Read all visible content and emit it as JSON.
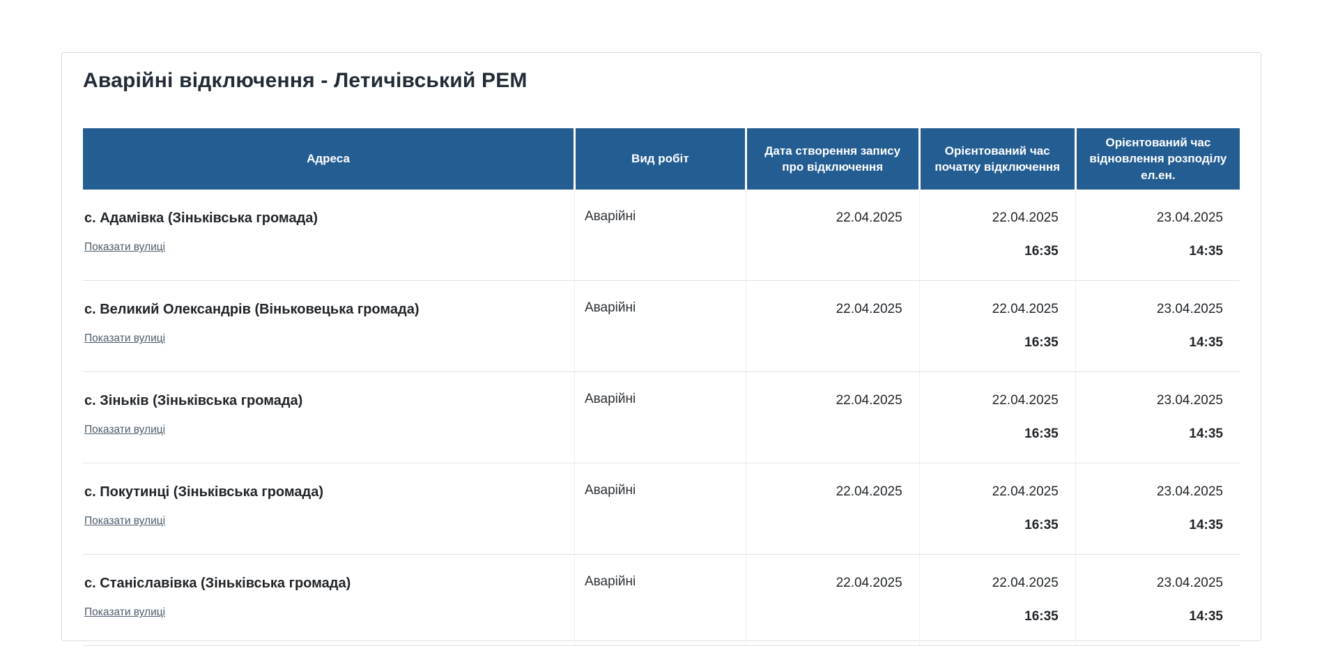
{
  "page": {
    "title": "Аварійні відключення - Летичівський РЕМ"
  },
  "table": {
    "columns": [
      {
        "label": "Адреса"
      },
      {
        "label": "Вид робіт"
      },
      {
        "label": "Дата створення запису про відключення"
      },
      {
        "label": "Орієнтований час початку відключення"
      },
      {
        "label": "Орієнтований час відновлення розподілу ел.ен."
      }
    ],
    "show_streets_label": "Показати вулиці",
    "rows": [
      {
        "address": "с. Адамівка (Зіньківська громада)",
        "work_type": "Аварійні",
        "created_date": "22.04.2025",
        "start_date": "22.04.2025",
        "start_time": "16:35",
        "restore_date": "23.04.2025",
        "restore_time": "14:35"
      },
      {
        "address": "с. Великий Олександрів (Віньковецька громада)",
        "work_type": "Аварійні",
        "created_date": "22.04.2025",
        "start_date": "22.04.2025",
        "start_time": "16:35",
        "restore_date": "23.04.2025",
        "restore_time": "14:35"
      },
      {
        "address": "с. Зіньків (Зіньківська громада)",
        "work_type": "Аварійні",
        "created_date": "22.04.2025",
        "start_date": "22.04.2025",
        "start_time": "16:35",
        "restore_date": "23.04.2025",
        "restore_time": "14:35"
      },
      {
        "address": "с. Покутинці (Зіньківська громада)",
        "work_type": "Аварійні",
        "created_date": "22.04.2025",
        "start_date": "22.04.2025",
        "start_time": "16:35",
        "restore_date": "23.04.2025",
        "restore_time": "14:35"
      },
      {
        "address": "с. Станіславівка (Зіньківська громада)",
        "work_type": "Аварійні",
        "created_date": "22.04.2025",
        "start_date": "22.04.2025",
        "start_time": "16:35",
        "restore_date": "23.04.2025",
        "restore_time": "14:35"
      }
    ]
  },
  "colors": {
    "header_background": "#245d92",
    "header_text": "#ffffff",
    "body_text": "#212529",
    "link_text": "#4d5c6b",
    "row_divider": "#dee2e6",
    "panel_border": "#d9dde1"
  }
}
